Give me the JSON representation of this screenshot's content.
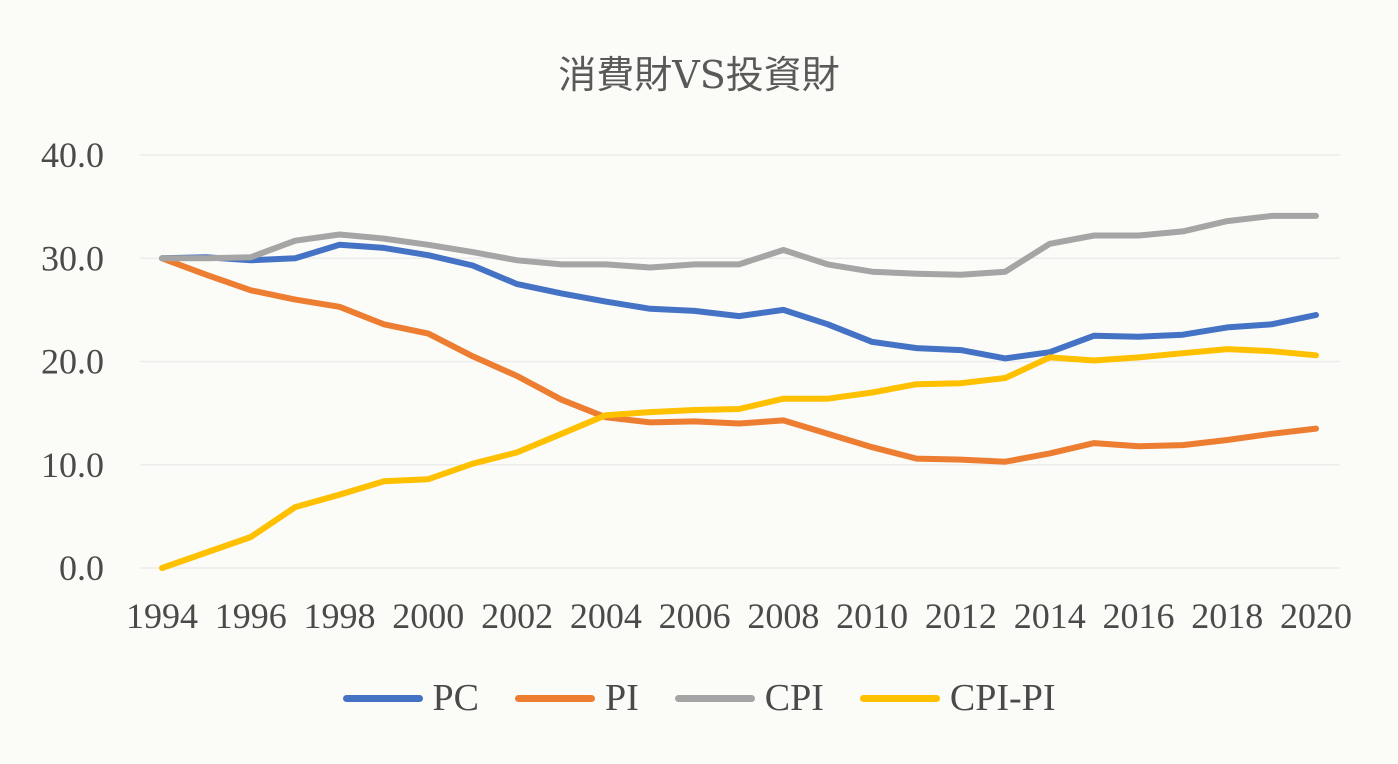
{
  "chart_data": {
    "type": "line",
    "title": "消費財VS投資財",
    "xlabel": "",
    "ylabel": "",
    "ylim": [
      0,
      40
    ],
    "yticks": [
      "0.0",
      "10.0",
      "20.0",
      "30.0",
      "40.0"
    ],
    "xticks": [
      "1994",
      "1996",
      "1998",
      "2000",
      "2002",
      "2004",
      "2006",
      "2008",
      "2010",
      "2012",
      "2014",
      "2016",
      "2018",
      "2020"
    ],
    "grid": true,
    "legend_position": "bottom",
    "x": [
      1994,
      1995,
      1996,
      1997,
      1998,
      1999,
      2000,
      2001,
      2002,
      2003,
      2004,
      2005,
      2006,
      2007,
      2008,
      2009,
      2010,
      2011,
      2012,
      2013,
      2014,
      2015,
      2016,
      2017,
      2018,
      2019,
      2020
    ],
    "series": [
      {
        "name": "PC",
        "color": "#4472c4",
        "values": [
          30.0,
          30.1,
          29.8,
          30.0,
          31.3,
          31.0,
          30.3,
          29.3,
          27.5,
          26.6,
          25.8,
          25.1,
          24.9,
          24.4,
          25.0,
          23.6,
          21.9,
          21.3,
          21.1,
          20.3,
          20.9,
          22.5,
          22.4,
          22.6,
          23.3,
          23.6,
          24.5
        ]
      },
      {
        "name": "PI",
        "color": "#ed7d31",
        "values": [
          30.0,
          28.4,
          26.9,
          26.0,
          25.3,
          23.6,
          22.7,
          20.5,
          18.6,
          16.3,
          14.6,
          14.1,
          14.2,
          14.0,
          14.3,
          13.0,
          11.7,
          10.6,
          10.5,
          10.3,
          11.1,
          12.1,
          11.8,
          11.9,
          12.4,
          13.0,
          13.5
        ]
      },
      {
        "name": "CPI",
        "color": "#a5a5a5",
        "values": [
          30.0,
          30.0,
          30.1,
          31.7,
          32.3,
          31.9,
          31.3,
          30.6,
          29.8,
          29.4,
          29.4,
          29.1,
          29.4,
          29.4,
          30.8,
          29.4,
          28.7,
          28.5,
          28.4,
          28.7,
          31.4,
          32.2,
          32.2,
          32.6,
          33.6,
          34.1,
          34.1
        ]
      },
      {
        "name": "CPI-PI",
        "color": "#ffc000",
        "values": [
          0.0,
          1.5,
          3.0,
          5.9,
          7.1,
          8.4,
          8.6,
          10.1,
          11.2,
          13.0,
          14.8,
          15.1,
          15.3,
          15.4,
          16.4,
          16.4,
          17.0,
          17.8,
          17.9,
          18.4,
          20.4,
          20.1,
          20.4,
          20.8,
          21.2,
          21.0,
          20.6
        ]
      }
    ]
  }
}
